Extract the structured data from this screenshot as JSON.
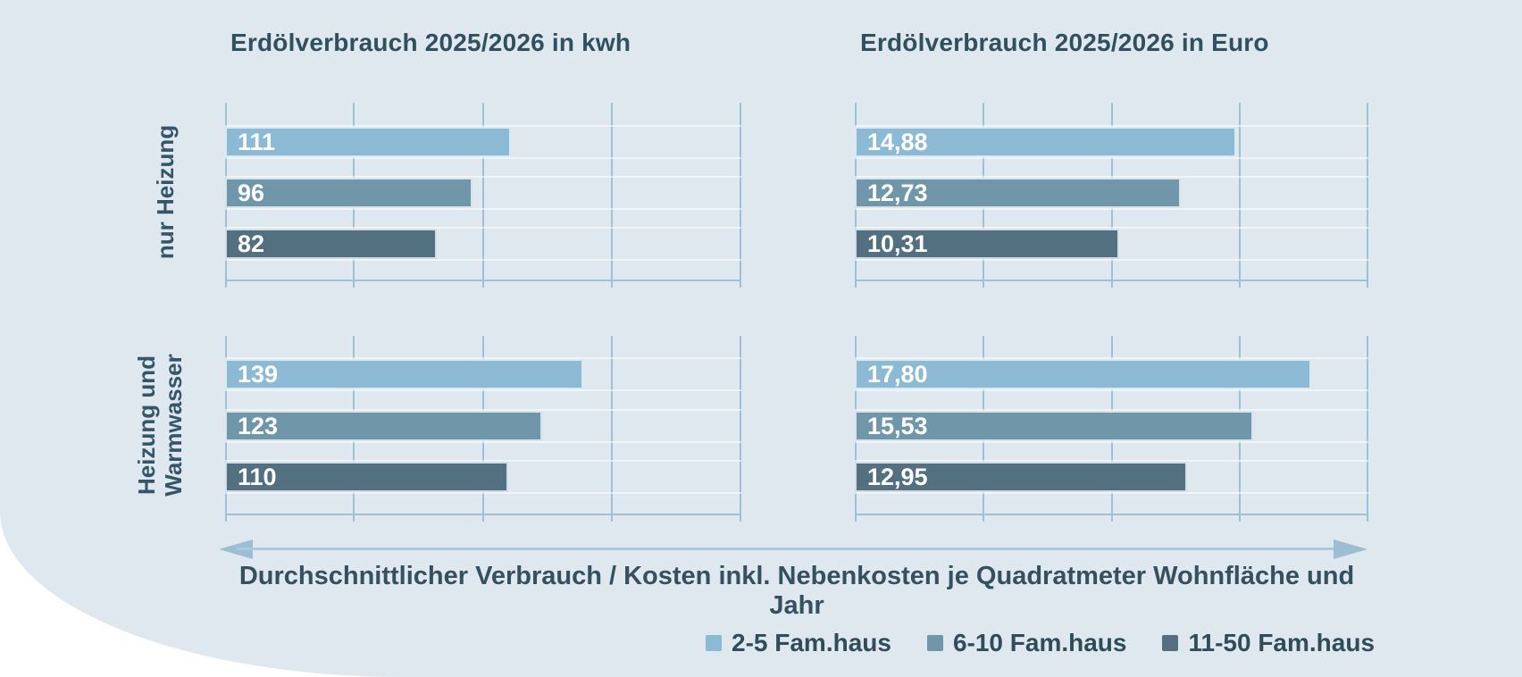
{
  "titles": {
    "left": "Erdölverbrauch 2025/2026 in kwh",
    "right": "Erdölverbrauch 2025/2026 in Euro"
  },
  "row_groups": [
    {
      "label": "nur Heizung"
    },
    {
      "label_line1": "Heizung und",
      "label_line2": "Warmwasser"
    }
  ],
  "axis_note": "Durchschnittlicher Verbrauch / Kosten inkl. Nebenkosten je Quadratmeter Wohnfläche und Jahr",
  "legend": {
    "items": [
      {
        "label": "2-5 Fam.haus",
        "color": "#8cb9d3"
      },
      {
        "label": "6-10 Fam.haus",
        "color": "#7097a9"
      },
      {
        "label": "11-50 Fam.haus",
        "color": "#52707f"
      }
    ]
  },
  "colors": {
    "background": "#dfe8ee",
    "grid": "#9cc2d8",
    "text": "#30505f",
    "arrow": "#a9cade"
  },
  "chart_data": [
    {
      "type": "bar",
      "orientation": "horizontal",
      "title": "Erdölverbrauch 2025/2026 in kwh",
      "categories": [
        "nur Heizung",
        "Heizung und Warmwasser"
      ],
      "series": [
        {
          "name": "2-5 Fam.haus",
          "values": [
            111,
            139
          ]
        },
        {
          "name": "6-10 Fam.haus",
          "values": [
            96,
            123
          ]
        },
        {
          "name": "11-50 Fam.haus",
          "values": [
            82,
            110
          ]
        }
      ],
      "value_labels": [
        [
          "111",
          "96",
          "82"
        ],
        [
          "139",
          "123",
          "110"
        ]
      ],
      "xlim": [
        0,
        200
      ],
      "gridline_step": 50,
      "grid": true,
      "legend_position": "bottom"
    },
    {
      "type": "bar",
      "orientation": "horizontal",
      "title": "Erdölverbrauch 2025/2026 in Euro",
      "categories": [
        "nur Heizung",
        "Heizung und Warmwasser"
      ],
      "series": [
        {
          "name": "2-5 Fam.haus",
          "values": [
            14.88,
            17.8
          ]
        },
        {
          "name": "6-10 Fam.haus",
          "values": [
            12.73,
            15.53
          ]
        },
        {
          "name": "11-50 Fam.haus",
          "values": [
            10.31,
            12.95
          ]
        }
      ],
      "value_labels": [
        [
          "14,88",
          "12,73",
          "10,31"
        ],
        [
          "17,80",
          "15,53",
          "12,95"
        ]
      ],
      "xlim": [
        0,
        20
      ],
      "gridline_step": 5,
      "grid": true,
      "legend_position": "bottom"
    }
  ]
}
